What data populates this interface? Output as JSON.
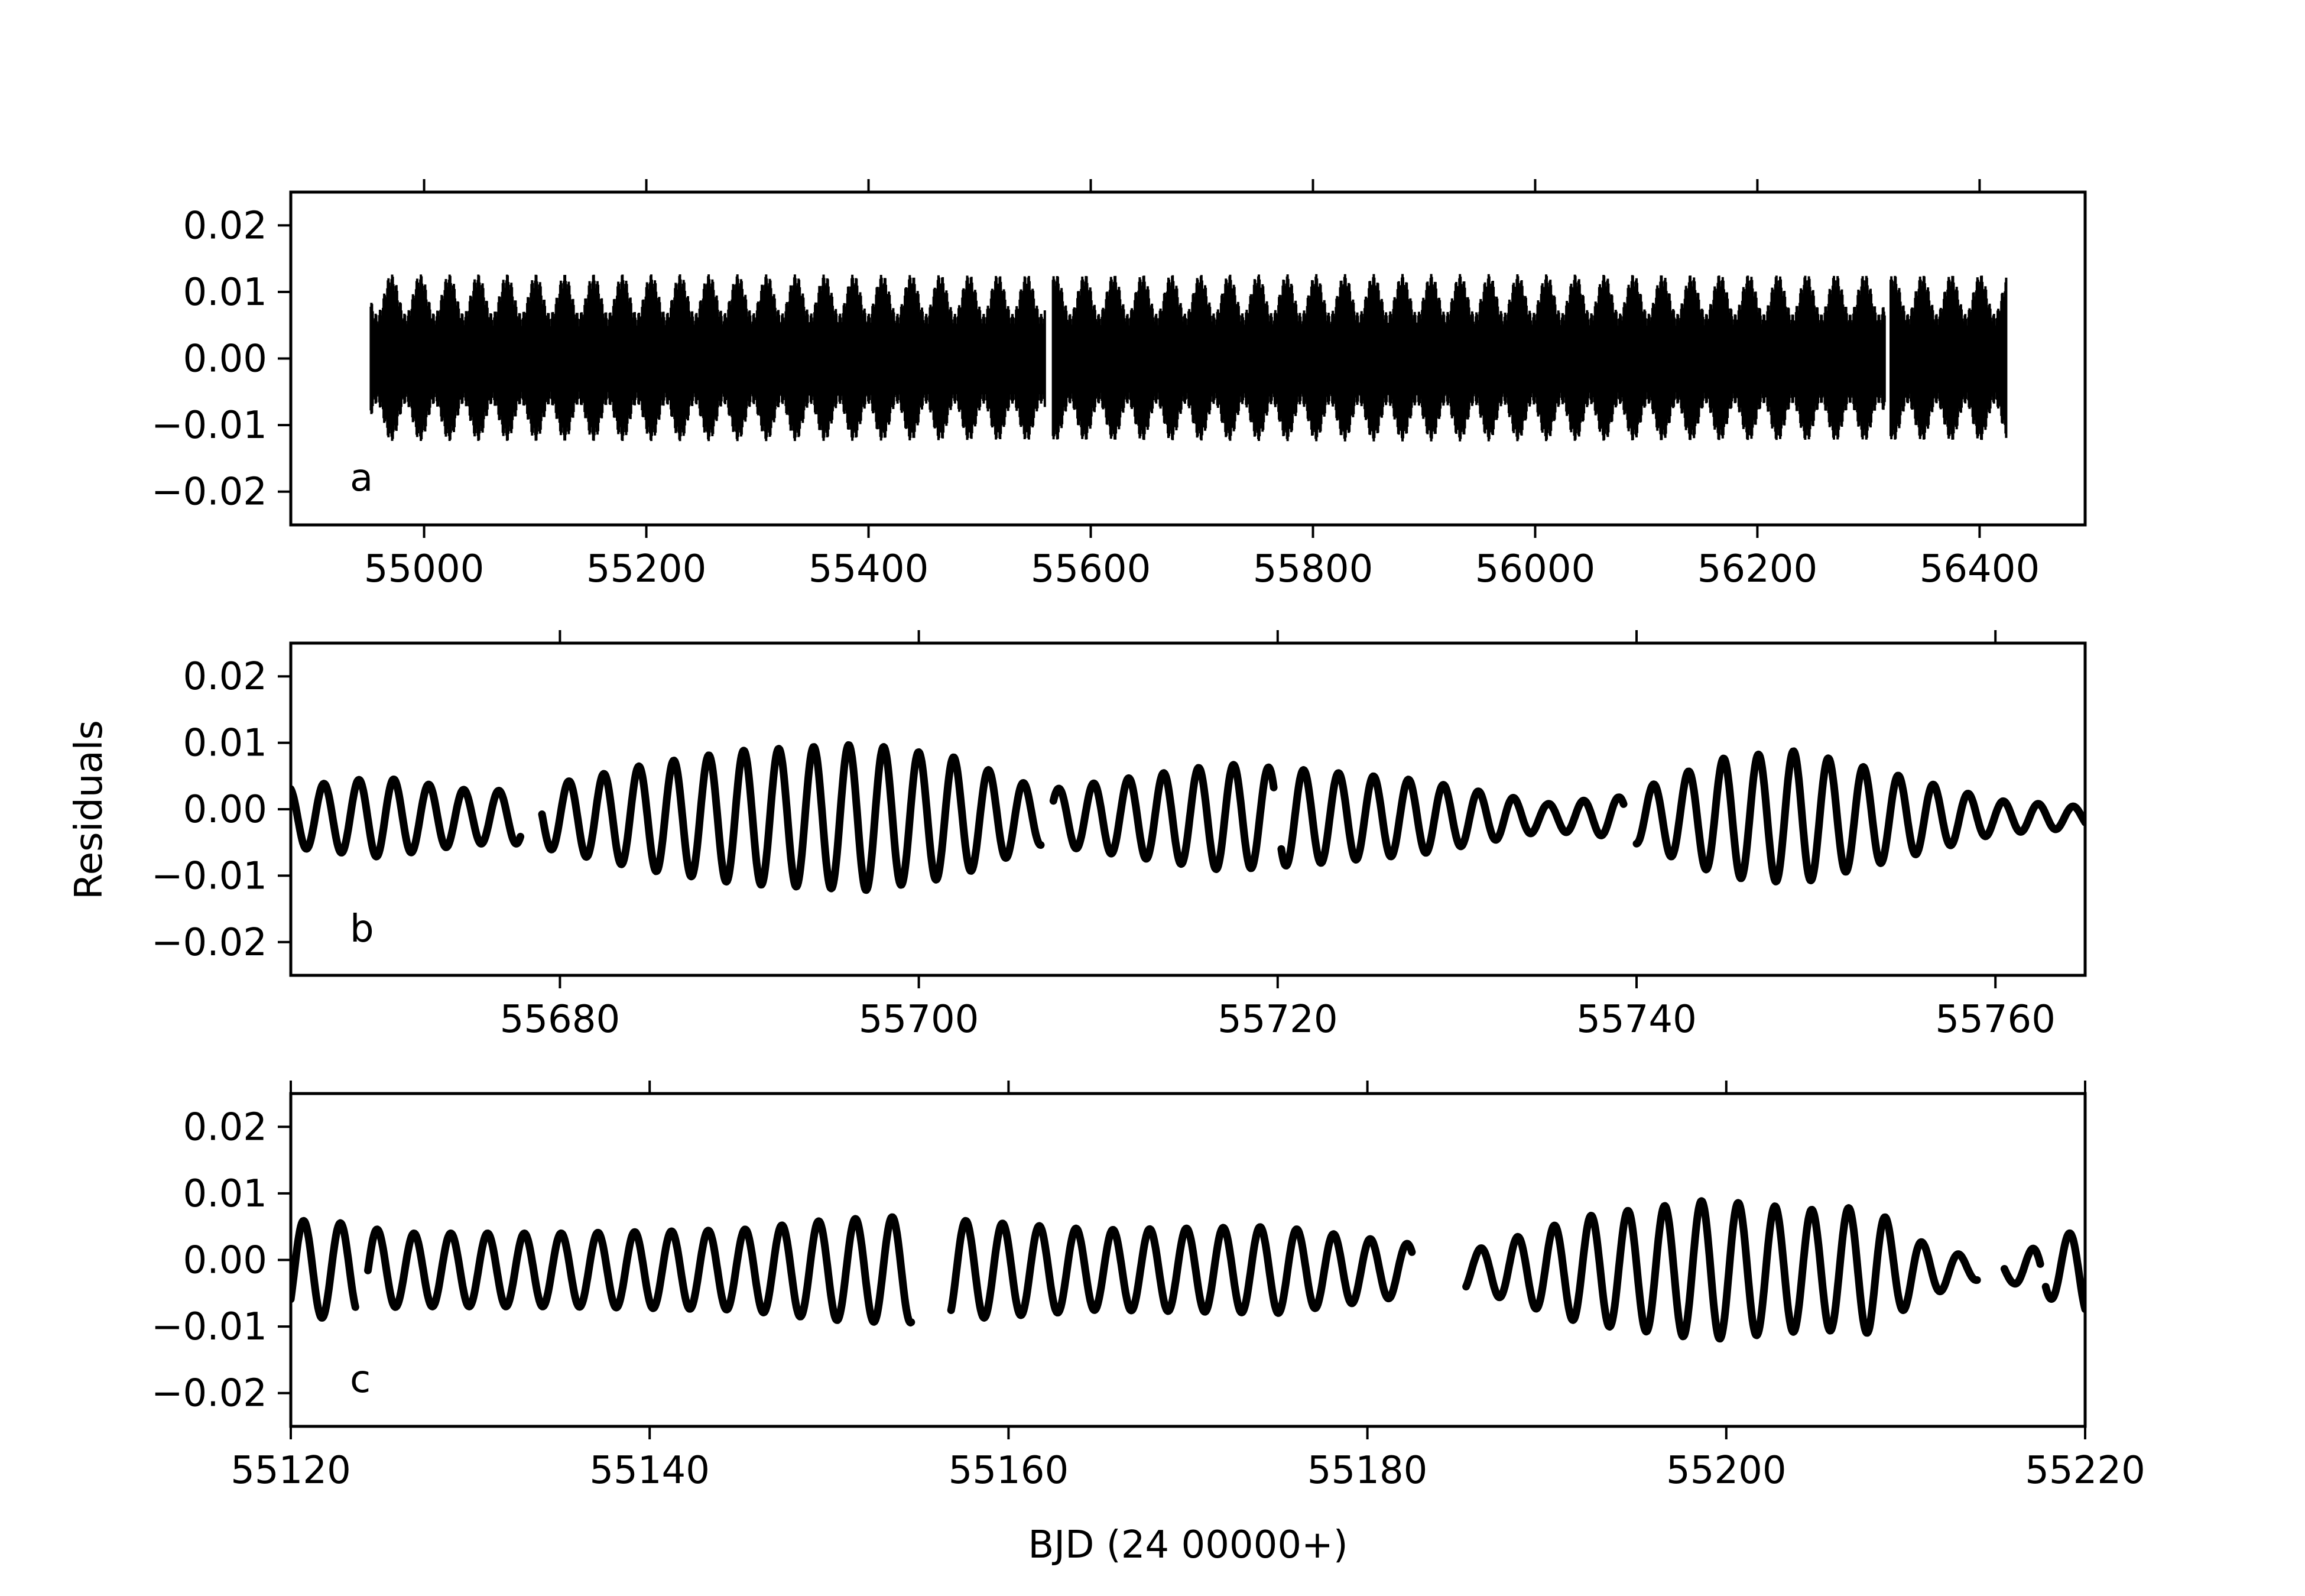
{
  "figure": {
    "ylabel": "Residuals",
    "xlabel": "BJD (24 00000+)"
  },
  "chart_data": [
    {
      "type": "scatter",
      "panel": "a",
      "xlim": [
        54880,
        56495
      ],
      "ylim": [
        -0.025,
        0.025
      ],
      "xticks": [
        55000,
        55200,
        55400,
        55600,
        55800,
        56000,
        56200,
        56400
      ],
      "xtick_labels": [
        "55000",
        "55200",
        "55400",
        "55600",
        "55800",
        "56000",
        "56200",
        "56400"
      ],
      "xtick_labels_shown": true,
      "yticks": [
        0.02,
        0.01,
        0.0,
        -0.01,
        -0.02
      ],
      "ytick_labels": [
        "0.02",
        "0.01",
        "0.00",
        "−0.01",
        "−0.02"
      ],
      "grid": false,
      "segments": [
        [
          54952,
          55559
        ],
        [
          55566,
          56315
        ],
        [
          56320,
          56424
        ]
      ],
      "model": {
        "envelope_mean": 0.0085,
        "envelope_var": 0.003,
        "envelope_period": 26.0,
        "min_offset": -0.002,
        "cycle_period": 0.8
      },
      "color": "#000000"
    },
    {
      "type": "scatter",
      "panel": "b",
      "xlim": [
        55665,
        55765
      ],
      "ylim": [
        -0.025,
        0.025
      ],
      "xticks": [
        55680,
        55700,
        55720,
        55740,
        55760
      ],
      "xtick_labels": [
        "55680",
        "55700",
        "55720",
        "55740",
        "55760"
      ],
      "xtick_labels_shown": true,
      "yticks": [
        0.02,
        0.01,
        0.0,
        -0.01,
        -0.02
      ],
      "ytick_labels": [
        "0.02",
        "0.01",
        "0.00",
        "−0.01",
        "−0.02"
      ],
      "grid": false,
      "segments": [
        [
          55665.0,
          55677.8
        ],
        [
          55679.0,
          55706.8
        ],
        [
          55707.5,
          55719.8
        ],
        [
          55720.2,
          55739.3
        ],
        [
          55740.0,
          55765.0
        ]
      ],
      "model": {
        "period": 1.95,
        "phase": 0.95,
        "offset": -0.0012,
        "amp_knots_x": [
          55665,
          55670,
          55675,
          55678,
          55685,
          55690,
          55697,
          55702,
          55707,
          55712,
          55717,
          55722,
          55728,
          55735,
          55739,
          55745,
          55749,
          55755,
          55760,
          55765
        ],
        "amp_knots_y": [
          0.0045,
          0.006,
          0.004,
          0.004,
          0.008,
          0.01,
          0.011,
          0.009,
          0.004,
          0.006,
          0.008,
          0.007,
          0.0055,
          0.002,
          0.003,
          0.009,
          0.01,
          0.006,
          0.0025,
          0.0015
        ]
      },
      "color": "#000000"
    },
    {
      "type": "scatter",
      "panel": "c",
      "xlim": [
        55120,
        55220
      ],
      "ylim": [
        -0.025,
        0.025
      ],
      "xticks": [
        55120,
        55140,
        55160,
        55180,
        55200,
        55220
      ],
      "xtick_labels": [
        "55120",
        "55140",
        "55160",
        "55180",
        "55200",
        "55220"
      ],
      "xtick_labels_shown": true,
      "yticks": [
        0.02,
        0.01,
        0.0,
        -0.01,
        -0.02
      ],
      "ytick_labels": [
        "0.02",
        "0.01",
        "0.00",
        "−0.01",
        "−0.02"
      ],
      "grid": false,
      "segments": [
        [
          55120.0,
          55123.6
        ],
        [
          55124.3,
          55154.6
        ],
        [
          55156.8,
          55182.5
        ],
        [
          55185.5,
          55214.0
        ],
        [
          55215.5,
          55217.5
        ],
        [
          55217.8,
          55220.0
        ]
      ],
      "model": {
        "period": 2.05,
        "phase": 0.6,
        "offset": -0.0015,
        "amp_knots_x": [
          55120,
          55123,
          55126,
          55135,
          55145,
          55150,
          55154,
          55157,
          55165,
          55175,
          55182,
          55186,
          55192,
          55199,
          55205,
          55208,
          55211,
          55214,
          55216,
          55220
        ],
        "amp_knots_y": [
          0.0075,
          0.007,
          0.0055,
          0.0055,
          0.006,
          0.0075,
          0.008,
          0.0075,
          0.006,
          0.0065,
          0.004,
          0.003,
          0.008,
          0.0105,
          0.009,
          0.0095,
          0.004,
          0.0015,
          0.002,
          0.0065
        ]
      },
      "color": "#000000"
    }
  ],
  "labels": [
    "a",
    "b",
    "c"
  ]
}
